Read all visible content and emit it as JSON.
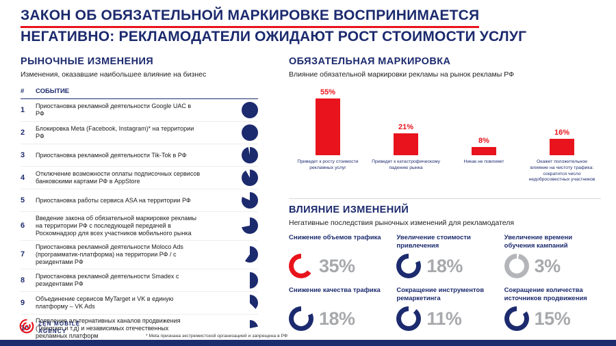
{
  "colors": {
    "navy": "#1c2a6e",
    "red": "#e8131c",
    "gray_number": "#a7a9ac",
    "donut_gray": "#b3b5b9"
  },
  "slide": {
    "title_line1": "ЗАКОН ОБ ОБЯЗАТЕЛЬНОЙ МАРКИРОВКЕ ВОСПРИНИМАЕТСЯ",
    "title_line2": "НЕГАТИВНО: РЕКЛАМОДАТЕЛИ ОЖИДАЮТ РОСТ СТОИМОСТИ УСЛУГ"
  },
  "market_changes": {
    "heading": "РЫНОЧНЫЕ ИЗМЕНЕНИЯ",
    "subtitle": "Изменения, оказавшие наибольшее влияние на бизнес",
    "columns": {
      "rank": "#",
      "event": "СОБЫТИЕ"
    },
    "rows": [
      {
        "rank": "1",
        "event": "Приостановка рекламной деятельности Google UAC в РФ",
        "pie_fill": 100
      },
      {
        "rank": "2",
        "event": "Блокировка Meta (Facebook, Instagram)* на территории РФ",
        "pie_fill": 100
      },
      {
        "rank": "3",
        "event": "Приостановка рекламной деятельности Tik-Tok в РФ",
        "pie_fill": 97
      },
      {
        "rank": "4",
        "event": "Отключение возможности оплаты подписочных сервисов банковскими картами РФ в AppStore",
        "pie_fill": 92
      },
      {
        "rank": "5",
        "event": "Приостановка работы сервиса ASA на территории РФ",
        "pie_fill": 82
      },
      {
        "rank": "6",
        "event": "Введение закона об обязательной маркировке рекламы на территории РФ с последующей передачей в Роскомнадзор для всех участников мобильного рынка",
        "pie_fill": 72
      },
      {
        "rank": "7",
        "event": "Приостановка рекламной деятельности Moloco Ads (программатик-платформа) на территории РФ / с резидентами РФ",
        "pie_fill": 60
      },
      {
        "rank": "8",
        "event": "Приостановка рекламной деятельности Smadex с резидентами РФ",
        "pie_fill": 50
      },
      {
        "rank": "9",
        "event": "Объединение сервисов MyTarget и VK в единую платформу – VK Ads",
        "pie_fill": 38
      },
      {
        "rank": "10",
        "event": "Появление альтернативных каналов продвижения (Telegram и т.д) и независимых отечественных рекламных платформ",
        "pie_fill": 22
      }
    ]
  },
  "marking": {
    "heading": "ОБЯЗАТЕЛЬНАЯ МАРКИРОВКА",
    "subtitle": "Влияние обязательной маркировки рекламы на рынок рекламы РФ"
  },
  "impact": {
    "heading": "ВЛИЯНИЕ ИЗМЕНЕНИЙ",
    "subtitle": "Негативные последствия рыночных изменений для рекламодателя"
  },
  "chart_data": [
    {
      "type": "bar",
      "title": "Влияние обязательной маркировки рекламы на рынок рекламы РФ",
      "categories": [
        "Приведет к росту стоимости рекламных услуг",
        "Приведет к катастрофическому падению рынка",
        "Никак не повлияет",
        "Окажет положительное влияние на чистоту трафика: сократится число недобросовестных участников"
      ],
      "values": [
        55,
        21,
        8,
        16
      ],
      "value_labels": [
        "55%",
        "21%",
        "8%",
        "16%"
      ],
      "bar_color": "#e8131c",
      "ylim": [
        0,
        60
      ],
      "grid": false,
      "legend": false
    },
    {
      "type": "pie",
      "title": "Негативные последствия рыночных изменений для рекламодателя",
      "series": [
        {
          "label": "Снижение объемов трафика",
          "pct": 35,
          "value_label": "35%",
          "color": "#e8131c"
        },
        {
          "label": "Увеличение стоимости привлечения",
          "pct": 18,
          "value_label": "18%",
          "color": "#1c2a6e"
        },
        {
          "label": "Увеличение времени обучения кампаний",
          "pct": 3,
          "value_label": "3%",
          "color": "#b3b5b9"
        },
        {
          "label": "Снижение качества трафика",
          "pct": 18,
          "value_label": "18%",
          "color": "#1c2a6e"
        },
        {
          "label": "Сокращение инструментов ремаркетинга",
          "pct": 11,
          "value_label": "11%",
          "color": "#1c2a6e"
        },
        {
          "label": "Сокращение количества источников продвижения",
          "pct": 15,
          "value_label": "15%",
          "color": "#1c2a6e"
        }
      ]
    }
  ],
  "footer": {
    "logo_line1": "ZEN MOBILE",
    "logo_line2": "AGENCY",
    "footnote": "* Meta признана экстремистской организацией и запрещена в РФ"
  }
}
